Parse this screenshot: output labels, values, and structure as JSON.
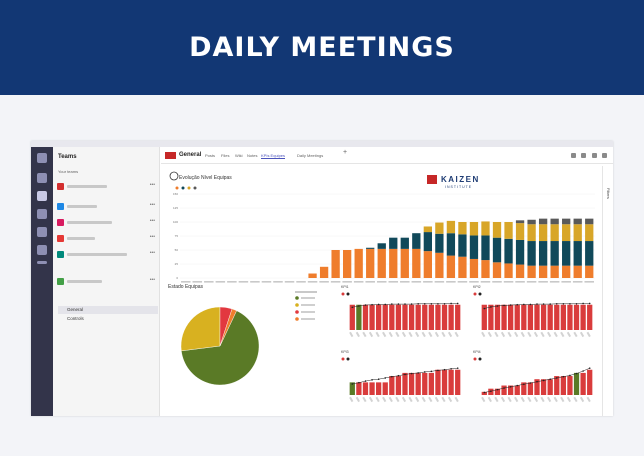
{
  "banner": {
    "title": "DAILY MEETINGS"
  },
  "teams": {
    "title": "Teams",
    "section": "Your teams",
    "items": [
      {
        "color": "#d32f2f"
      },
      {
        "color": "#1e88e5"
      },
      {
        "color": "#d81b60"
      },
      {
        "color": "#e53935"
      },
      {
        "color": "#00897b"
      },
      {
        "color": "#43a047"
      }
    ],
    "channels": [
      "General",
      "Controls"
    ]
  },
  "header": {
    "channel": "General",
    "tabs": [
      "Posts",
      "Files",
      "Wiki",
      "Notes",
      "KPIs Equipes",
      "Daily Meetings"
    ],
    "active_tab": "KPIs Equipes"
  },
  "report": {
    "main_title": "Evolução Nível Equipas",
    "pie_title": "Estado Equipas",
    "brand_name": "KAIZEN",
    "brand_sub": "INSTITUTE",
    "filters_label": "Filters",
    "kpi_panels": [
      "KPI1",
      "KPI2",
      "KPI3",
      "KPI4"
    ]
  },
  "chart_data": [
    {
      "type": "bar",
      "title": "Evolução Nível Equipas",
      "stacked": true,
      "categories_count": 36,
      "ylim": [
        0,
        150
      ],
      "yticks": [
        0,
        25,
        50,
        75,
        100,
        125,
        150
      ],
      "series": [
        {
          "color": "#ef7d2c",
          "values": [
            0,
            0,
            0,
            0,
            0,
            0,
            0,
            0,
            0,
            0,
            0,
            8,
            20,
            50,
            50,
            52,
            52,
            52,
            52,
            52,
            52,
            48,
            45,
            40,
            38,
            34,
            32,
            28,
            26,
            24,
            22,
            22,
            22,
            22,
            22,
            22
          ]
        },
        {
          "color": "#11495a",
          "values": [
            0,
            0,
            0,
            0,
            0,
            0,
            0,
            0,
            0,
            0,
            0,
            0,
            0,
            0,
            0,
            0,
            2,
            10,
            20,
            20,
            28,
            34,
            34,
            40,
            40,
            42,
            44,
            44,
            44,
            44,
            44,
            44,
            44,
            44,
            44,
            44
          ]
        },
        {
          "color": "#d8a628",
          "values": [
            0,
            0,
            0,
            0,
            0,
            0,
            0,
            0,
            0,
            0,
            0,
            0,
            0,
            0,
            0,
            0,
            0,
            0,
            0,
            0,
            0,
            10,
            20,
            22,
            22,
            24,
            25,
            28,
            30,
            30,
            30,
            30,
            30,
            30,
            30,
            30
          ]
        },
        {
          "color": "#595959",
          "values": [
            0,
            0,
            0,
            0,
            0,
            0,
            0,
            0,
            0,
            0,
            0,
            0,
            0,
            0,
            0,
            0,
            0,
            0,
            0,
            0,
            0,
            0,
            0,
            0,
            0,
            0,
            0,
            0,
            0,
            5,
            8,
            10,
            10,
            10,
            10,
            10
          ]
        }
      ]
    },
    {
      "type": "pie",
      "title": "Estado Equipas",
      "values": [
        66,
        27,
        5,
        2
      ],
      "colors": [
        "#5a7a26",
        "#d8b120",
        "#e2383f",
        "#ef7d2c"
      ]
    },
    {
      "type": "bar",
      "title": "KPI1",
      "bar_colors": [
        "#d93c3c"
      ],
      "values": [
        8,
        8,
        8,
        8,
        8,
        8,
        8,
        8,
        8,
        8,
        8,
        8,
        8,
        8,
        8,
        8,
        8
      ],
      "line": [
        7.2,
        7.6,
        7.9,
        8.0,
        8.1,
        8.1,
        8.2,
        8.2,
        8.2,
        8.2,
        8.3,
        8.3,
        8.3,
        8.3,
        8.3,
        8.4,
        8.4
      ],
      "highlight_index": 1,
      "highlight_color": "#5a7a26"
    },
    {
      "type": "bar",
      "title": "KPI2",
      "bar_colors": [
        "#d93c3c"
      ],
      "values": [
        8,
        8,
        8,
        8,
        8,
        8,
        8,
        8,
        8,
        8,
        8,
        8,
        8,
        8,
        8,
        8,
        8
      ],
      "line": [
        6.8,
        7.3,
        7.6,
        7.8,
        7.9,
        8.0,
        8.1,
        8.1,
        8.2,
        8.2,
        8.2,
        8.3,
        8.3,
        8.3,
        8.3,
        8.4,
        8.4
      ]
    },
    {
      "type": "bar",
      "title": "KPI3",
      "values": [
        4,
        4,
        4,
        4,
        4,
        4,
        6,
        6,
        7,
        7,
        7,
        7,
        7,
        8,
        8,
        8,
        8
      ],
      "line": [
        3.5,
        3.9,
        4.4,
        4.8,
        5.0,
        5.4,
        5.8,
        6.1,
        6.5,
        6.8,
        7.0,
        7.3,
        7.5,
        7.8,
        8.0,
        8.3,
        8.5
      ],
      "highlight_index": 0,
      "highlight_color": "#5a7a26"
    },
    {
      "type": "bar",
      "title": "KPI4",
      "values": [
        1,
        2,
        2,
        3,
        3,
        3,
        4,
        4,
        5,
        5,
        5,
        6,
        6,
        6,
        7,
        7,
        8
      ],
      "line": [
        0.8,
        1.2,
        1.7,
        2.2,
        2.6,
        3.0,
        3.4,
        3.8,
        4.2,
        4.6,
        5.0,
        5.4,
        5.8,
        6.2,
        6.8,
        7.6,
        8.5
      ],
      "highlight_index": 14,
      "highlight_color": "#5a7a26"
    }
  ]
}
